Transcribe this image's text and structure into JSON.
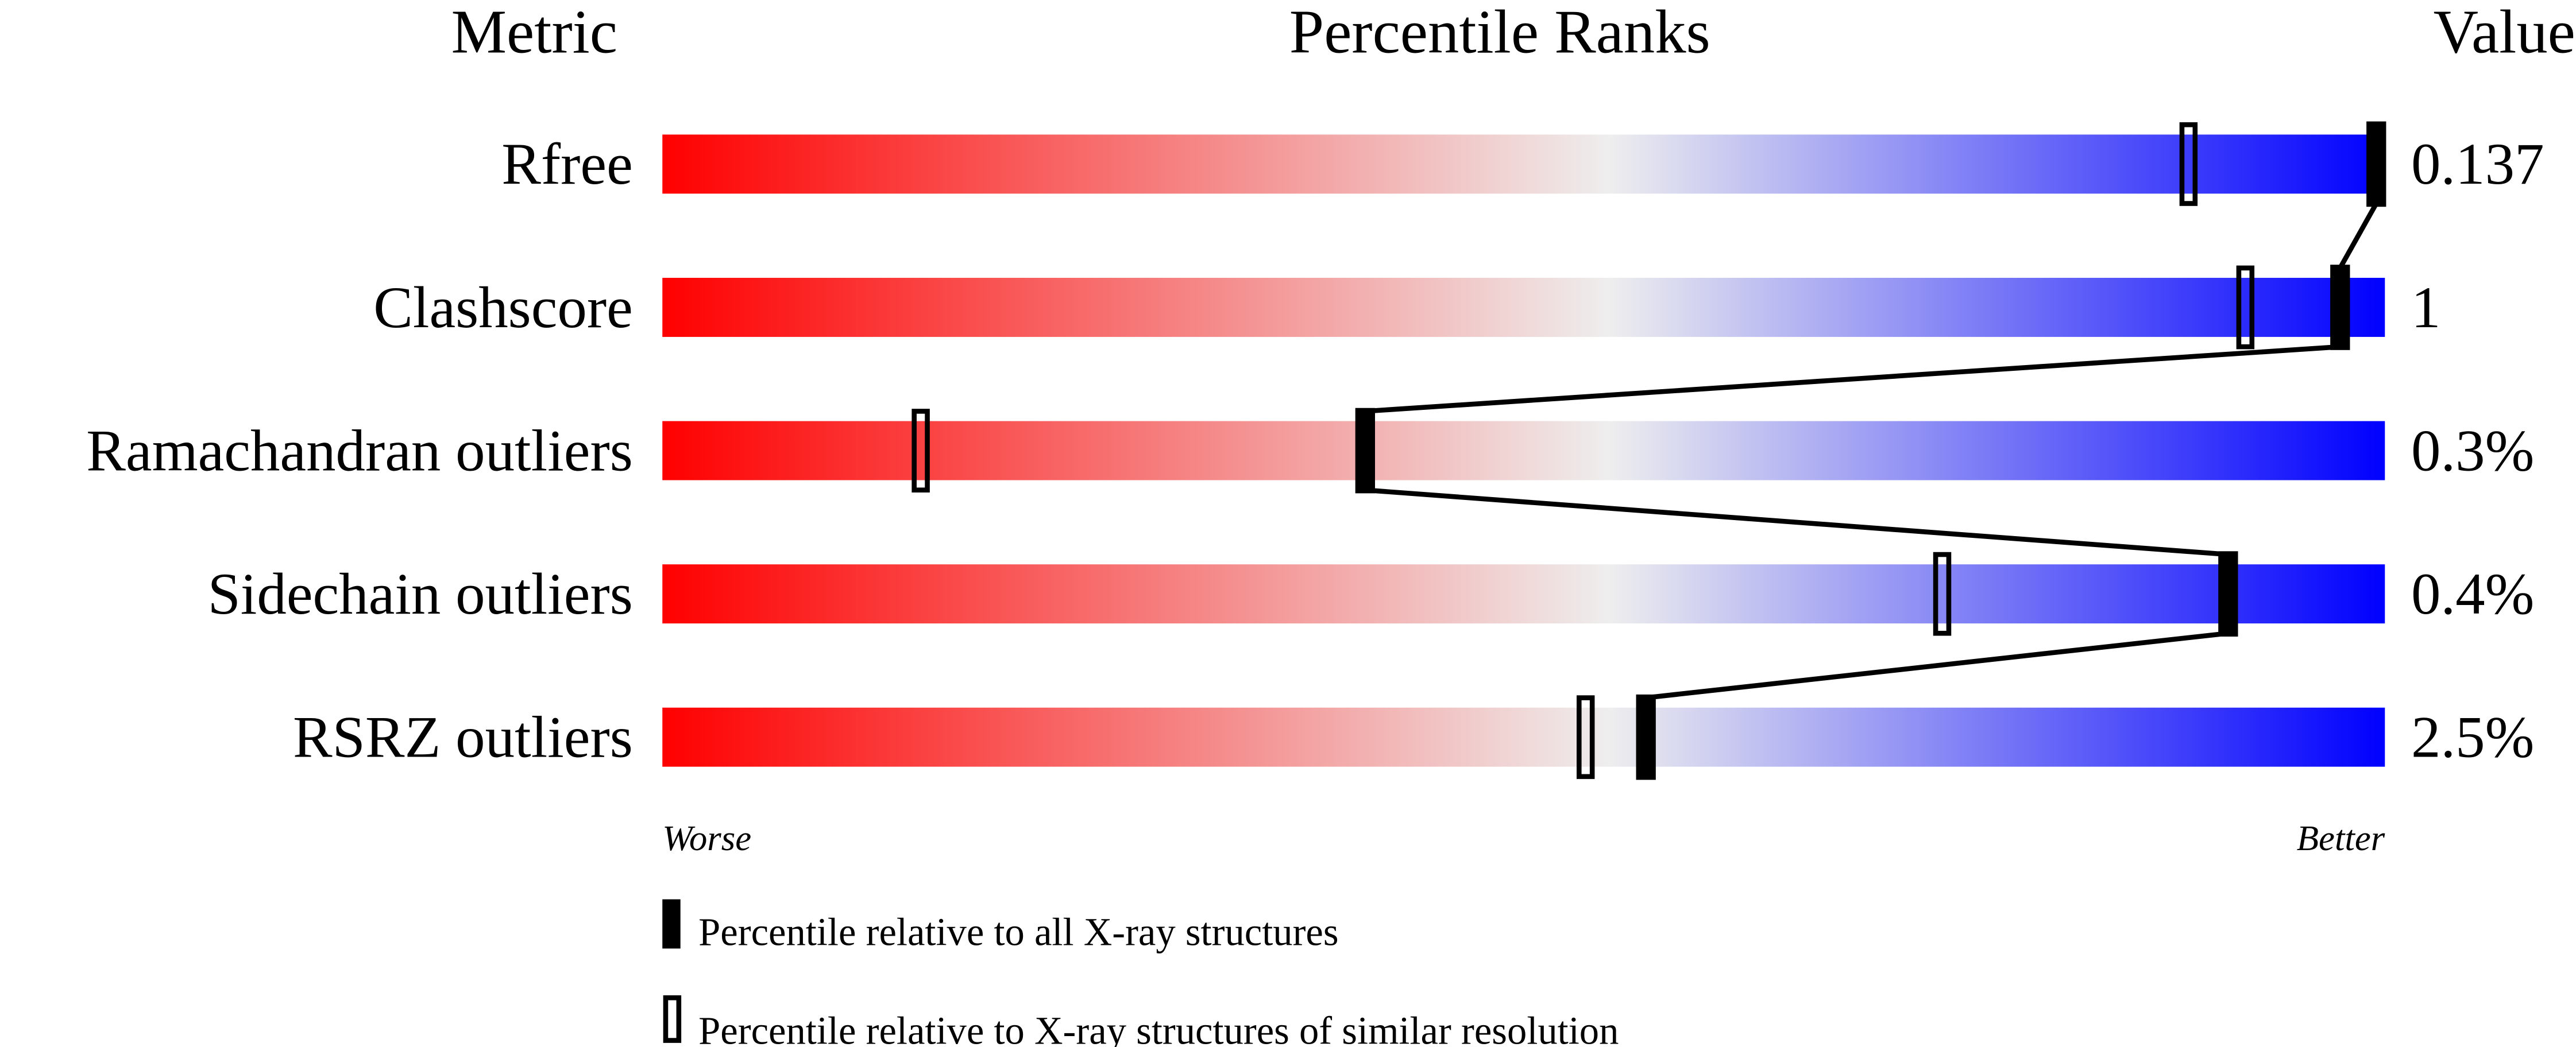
{
  "chart_data": {
    "type": "bar",
    "headers": {
      "metric": "Metric",
      "ranks": "Percentile Ranks",
      "value": "Value"
    },
    "xlim": [
      0,
      100
    ],
    "axis_labels": {
      "left": "Worse",
      "right": "Better"
    },
    "gradient_colors": {
      "worse": "#ff0000",
      "middle": "#eeeeee",
      "better": "#0000ff"
    },
    "rows": [
      {
        "metric": "Rfree",
        "value": "0.137",
        "percentile_all": 99.5,
        "percentile_similar": 88.6
      },
      {
        "metric": "Clashscore",
        "value": "1",
        "percentile_all": 97.4,
        "percentile_similar": 91.9
      },
      {
        "metric": "Ramachandran outliers",
        "value": "0.3%",
        "percentile_all": 40.8,
        "percentile_similar": 15.0
      },
      {
        "metric": "Sidechain outliers",
        "value": "0.4%",
        "percentile_all": 90.9,
        "percentile_similar": 74.3
      },
      {
        "metric": "RSRZ outliers",
        "value": "2.5%",
        "percentile_all": 57.1,
        "percentile_similar": 53.6
      }
    ],
    "legend": [
      {
        "marker": "filled",
        "label": "Percentile relative to all X-ray structures"
      },
      {
        "marker": "open",
        "label": "Percentile relative to X-ray structures of similar resolution"
      }
    ]
  }
}
